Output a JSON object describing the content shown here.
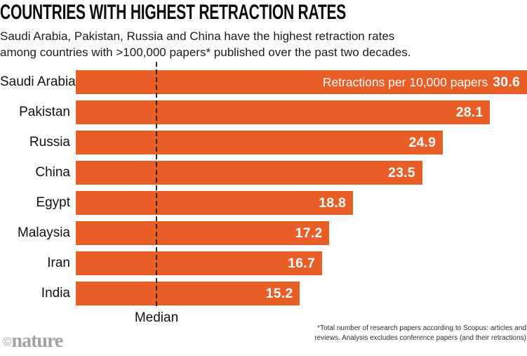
{
  "header": {
    "title": "COUNTRIES WITH HIGHEST RETRACTION RATES",
    "subtitle_line1": "Saudi Arabia, Pakistan, Russia and China have the highest retraction rates",
    "subtitle_line2": "among countries with >100,000 papers* published over the past two decades."
  },
  "chart_data": {
    "type": "bar",
    "orientation": "horizontal",
    "title": "COUNTRIES WITH HIGHEST RETRACTION RATES",
    "categories": [
      "Saudi Arabia",
      "Pakistan",
      "Russia",
      "China",
      "Egypt",
      "Malaysia",
      "Iran",
      "India"
    ],
    "values": [
      30.6,
      28.1,
      24.9,
      23.5,
      18.8,
      17.2,
      16.7,
      15.2
    ],
    "value_label": "Retractions per 10,000 papers",
    "median_label": "Median",
    "xlim": [
      0,
      30.6
    ],
    "bar_color": "#E95D26",
    "value_text_color": "#FFFFFF",
    "grid": false,
    "legend": false
  },
  "footer": {
    "footnote_line1": "*Total number of research papers according to Scopus: articles and",
    "footnote_line2": "reviews. Analysis excludes conference papers (and their retractions)",
    "copyright_symbol": "©",
    "brand": "nature"
  }
}
